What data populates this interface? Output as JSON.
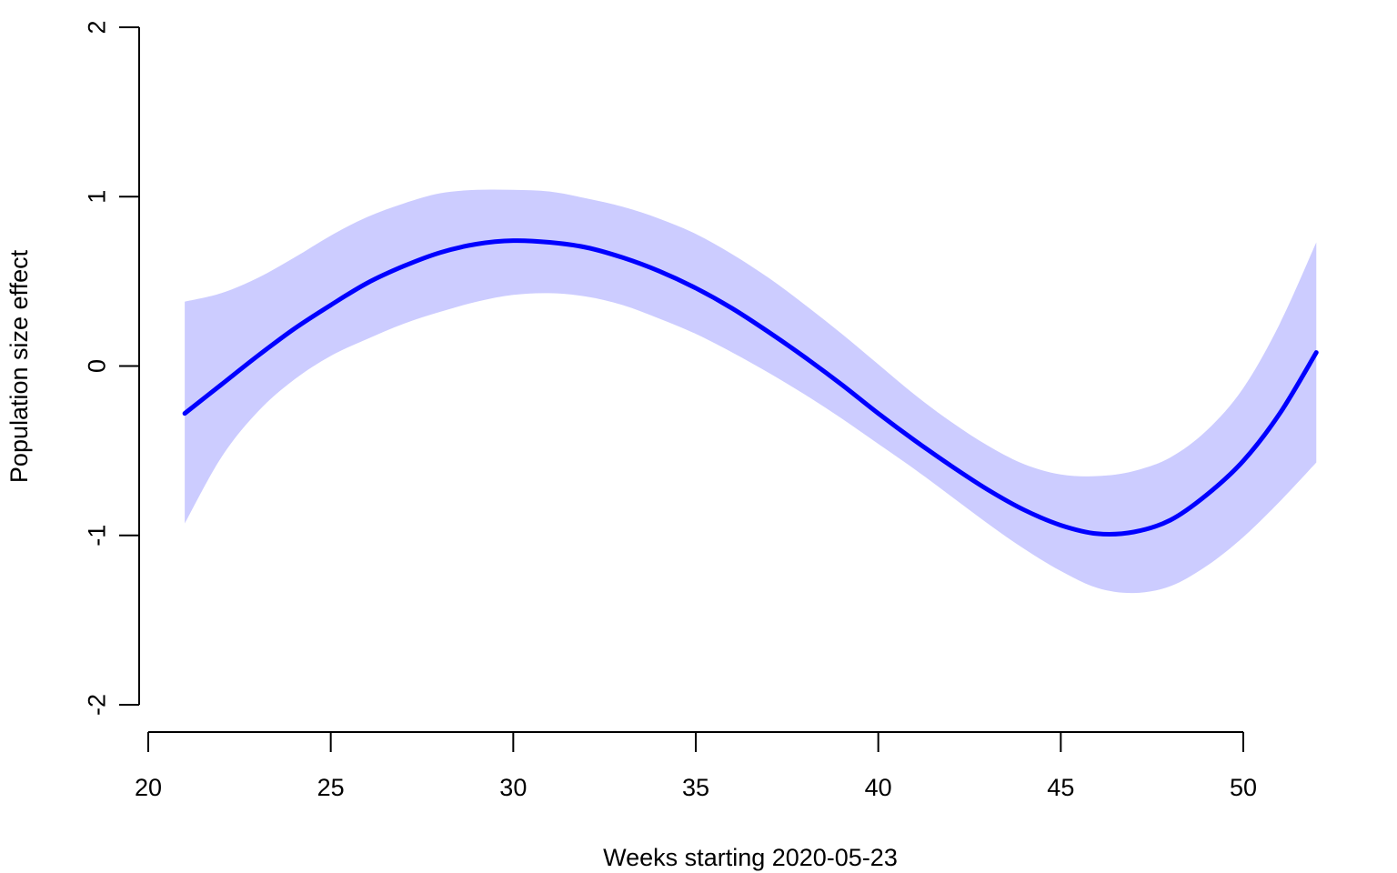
{
  "chart_data": {
    "type": "line",
    "title": "",
    "xlabel": "Weeks starting 2020-05-23",
    "ylabel": "Population size effect",
    "xlim": [
      20,
      50
    ],
    "ylim": [
      -2,
      2
    ],
    "x_ticks": [
      20,
      25,
      30,
      35,
      40,
      45,
      50
    ],
    "x_tick_labels": [
      "20",
      "25",
      "30",
      "35",
      "40",
      "45",
      "50"
    ],
    "y_ticks": [
      -2,
      -1,
      0,
      1,
      2
    ],
    "y_tick_labels": [
      "-2",
      "-1",
      "0",
      "1",
      "2"
    ],
    "grid": false,
    "legend": "none",
    "colors": {
      "line": "#0000ff",
      "band": "#ccccff",
      "axis": "#000000"
    },
    "series": [
      {
        "x": [
          21,
          22,
          23,
          24,
          25,
          26,
          27,
          28,
          29,
          30,
          31,
          32,
          33,
          34,
          35,
          36,
          37,
          38,
          39,
          40,
          41,
          42,
          43,
          44,
          45,
          46,
          47,
          48,
          49,
          50,
          51,
          52
        ],
        "y": [
          -0.28,
          -0.11,
          0.06,
          0.22,
          0.36,
          0.49,
          0.59,
          0.67,
          0.72,
          0.74,
          0.73,
          0.7,
          0.64,
          0.56,
          0.46,
          0.34,
          0.2,
          0.05,
          -0.11,
          -0.28,
          -0.44,
          -0.59,
          -0.73,
          -0.85,
          -0.94,
          -0.99,
          -0.98,
          -0.91,
          -0.76,
          -0.56,
          -0.28,
          0.08
        ],
        "lower": [
          -0.93,
          -0.54,
          -0.27,
          -0.08,
          0.06,
          0.16,
          0.25,
          0.32,
          0.38,
          0.42,
          0.43,
          0.41,
          0.36,
          0.28,
          0.19,
          0.08,
          -0.04,
          -0.17,
          -0.31,
          -0.46,
          -0.61,
          -0.77,
          -0.93,
          -1.08,
          -1.21,
          -1.31,
          -1.34,
          -1.3,
          -1.18,
          -1.01,
          -0.8,
          -0.57
        ],
        "upper": [
          0.38,
          0.43,
          0.52,
          0.64,
          0.77,
          0.88,
          0.96,
          1.02,
          1.04,
          1.04,
          1.03,
          0.99,
          0.94,
          0.87,
          0.78,
          0.66,
          0.52,
          0.36,
          0.19,
          0.01,
          -0.17,
          -0.33,
          -0.47,
          -0.58,
          -0.64,
          -0.65,
          -0.62,
          -0.54,
          -0.38,
          -0.13,
          0.25,
          0.73
        ]
      }
    ]
  }
}
